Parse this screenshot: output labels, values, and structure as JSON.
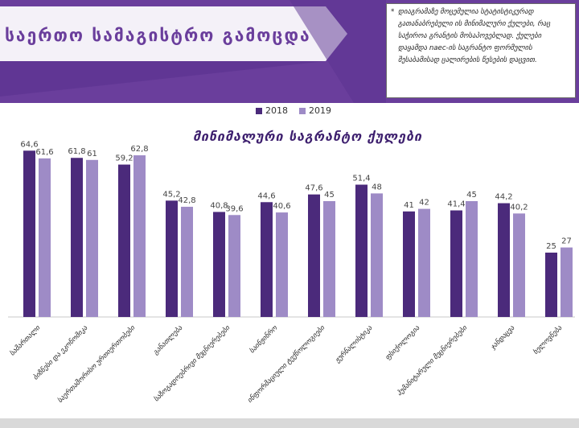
{
  "banner": {
    "title": "საერთო სამაგისტრო გამოცდა",
    "note_bullet": "*",
    "note_text": "დიაგრამაზე მოცემულია სტატისტიკურად გათანაბრებული ის მინიმალური ქულები, რაც საჭიროა გრანტის მოსაპოვებლად. ქულები დაყამდა naec-ის საგრანტო ფორმულის შესაბამისად ცალირების წესების დაცვით."
  },
  "colors": {
    "banner": "#6a3e9c",
    "banner_dark": "#4a2a7a",
    "bar_2018": "#4b2a7b",
    "bar_2019": "#9e8bc6"
  },
  "chart_data": {
    "type": "bar",
    "title": "მინიმალური საგრანტო ქულები",
    "categories": [
      "სამართალი",
      "ბიზნესი და ეკონომიკა",
      "საერთაშორისო ურთიერთობები",
      "განათლება",
      "საზოგადოებრივი მეცნიერებები",
      "საინჟინრო",
      "ინფორმაციული ტექნოლოგიები",
      "ჟურნალისტიკა",
      "ფსიქოლოგია",
      "ჰუმანიტარული მეცნიერებები",
      "ჯანდაცვა",
      "ხელოვნება"
    ],
    "series": [
      {
        "name": "2018",
        "values": [
          64.6,
          61.8,
          59.2,
          45.2,
          40.8,
          44.6,
          47.6,
          51.4,
          41,
          41.4,
          44.2,
          25
        ]
      },
      {
        "name": "2019",
        "values": [
          61.6,
          61,
          62.8,
          42.8,
          39.6,
          40.6,
          45,
          48,
          42,
          45,
          40.2,
          27
        ]
      }
    ],
    "data_labels": [
      [
        "64,6",
        "61,8",
        "59,2",
        "45,2",
        "40,8",
        "44,6",
        "47,6",
        "51,4",
        "41",
        "41,4",
        "44,2",
        "25"
      ],
      [
        "61,6",
        "61",
        "62,8",
        "42,8",
        "39,6",
        "40,6",
        "45",
        "48",
        "42",
        "45",
        "40,2",
        "27"
      ]
    ],
    "ylim": [
      0,
      70
    ],
    "legend_position": "top-center",
    "grid": false
  }
}
